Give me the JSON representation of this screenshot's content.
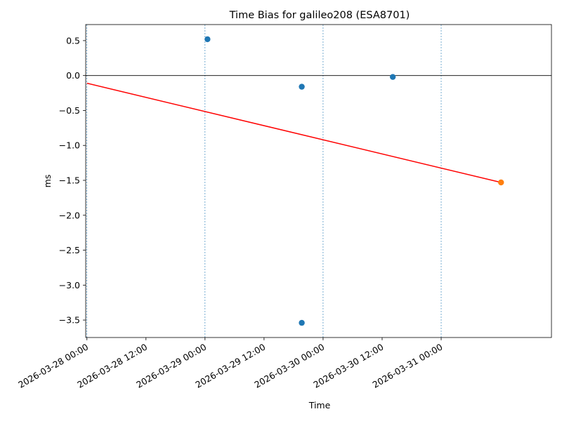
{
  "chart_data": {
    "type": "scatter",
    "title": "Time Bias for galileo208 (ESA8701)",
    "xlabel": "Time",
    "ylabel": "ms",
    "xlim": [
      "2026-03-27 23:45",
      "2026-03-31 22:25"
    ],
    "ylim": [
      -3.75,
      0.73
    ],
    "x_ticks": [
      "2026-03-28 00:00",
      "2026-03-28 12:00",
      "2026-03-29 00:00",
      "2026-03-29 12:00",
      "2026-03-30 00:00",
      "2026-03-30 12:00",
      "2026-03-31 00:00"
    ],
    "y_ticks": [
      0.5,
      0.0,
      -0.5,
      -1.0,
      -1.5,
      -2.0,
      -2.5,
      -3.0,
      -3.5
    ],
    "y_tick_labels": [
      "0.5",
      "0.0",
      "−0.5",
      "−1.0",
      "−1.5",
      "−2.0",
      "−2.5",
      "−3.0",
      "−3.5"
    ],
    "vertical_grid_lines": [
      "2026-03-28 00:00",
      "2026-03-29 00:00",
      "2026-03-30 00:00",
      "2026-03-31 00:00"
    ],
    "zero_line": 0,
    "series": [
      {
        "color": "#1f77b4",
        "points": [
          {
            "x": "2026-03-29 00:30",
            "y": 0.52
          },
          {
            "x": "2026-03-29 19:40",
            "y": -0.16
          },
          {
            "x": "2026-03-29 19:40",
            "y": -3.54
          },
          {
            "x": "2026-03-30 14:10",
            "y": -0.02
          }
        ]
      },
      {
        "color": "#ff7f0e",
        "points": [
          {
            "x": "2026-03-31 12:10",
            "y": -1.53
          }
        ]
      }
    ],
    "trend_line": {
      "color": "#ff0000",
      "start": {
        "x": "2026-03-28 00:00",
        "y": -0.11
      },
      "end": {
        "x": "2026-03-31 12:10",
        "y": -1.53
      }
    }
  }
}
